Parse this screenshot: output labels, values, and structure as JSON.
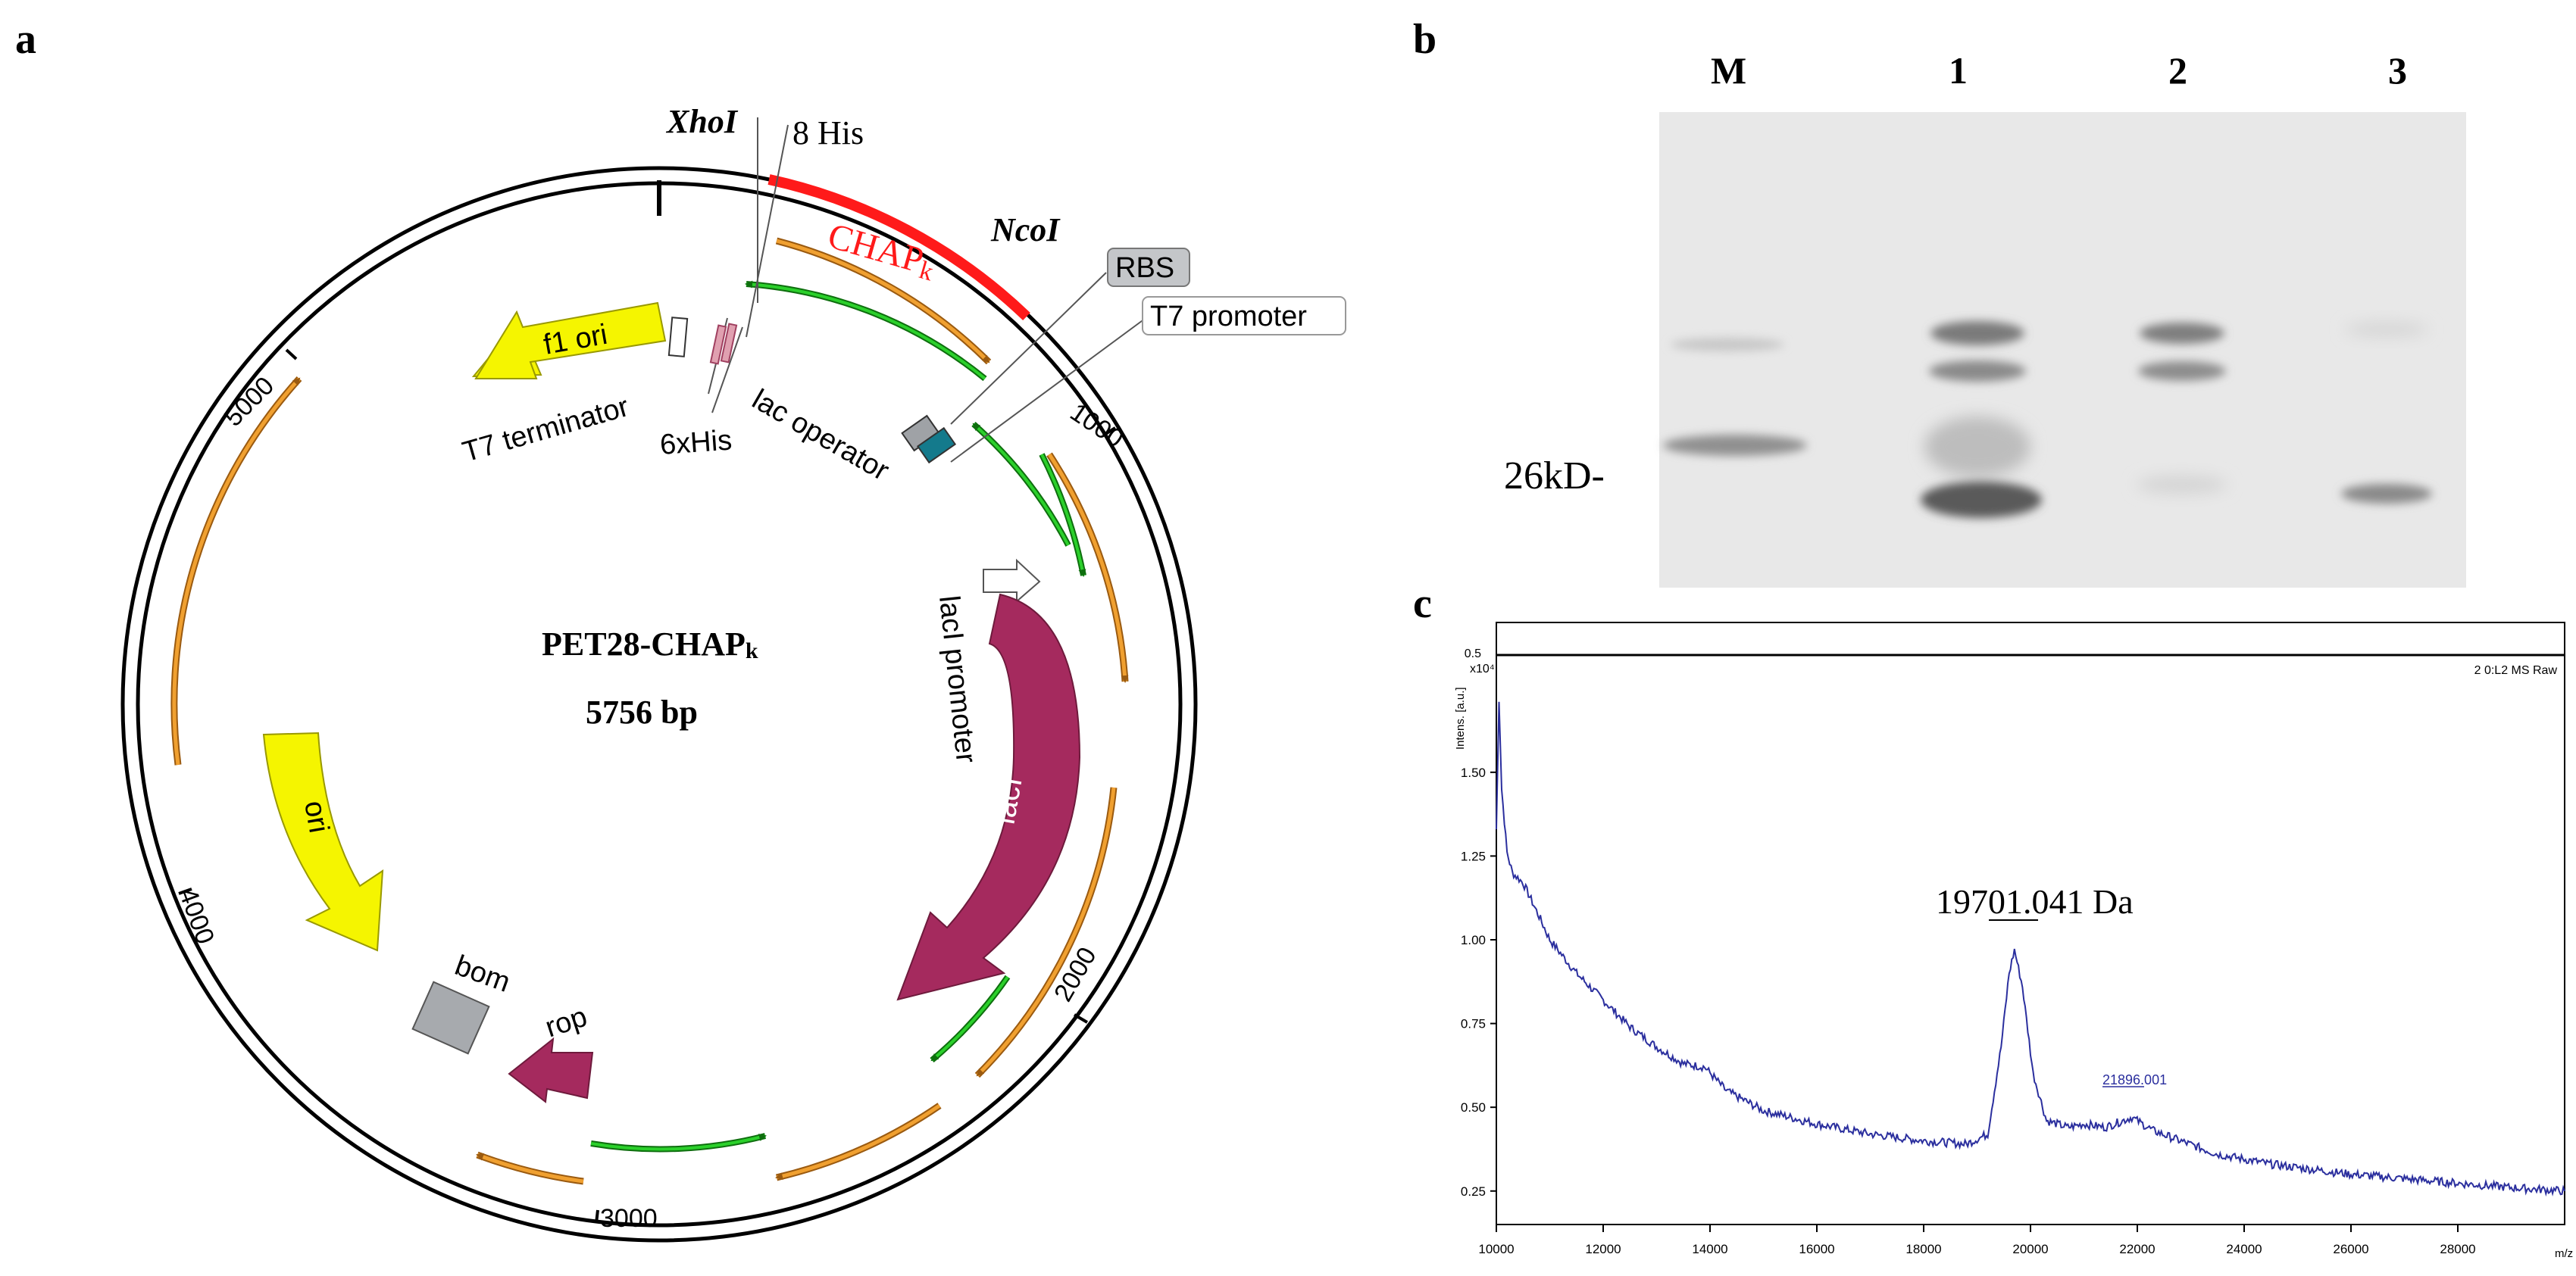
{
  "panel_a": {
    "letter": "a",
    "plasmid_name": "PET28-CHAP",
    "plasmid_name_sub": "k",
    "plasmid_size": "5756 bp",
    "features": {
      "xhoi": "XhoI",
      "his8": "8 His",
      "chapk": "CHAP",
      "chapk_sub": "k",
      "ncoi": "NcoI",
      "rbs": "RBS",
      "t7_promoter": "T7 promoter",
      "f1_ori": "f1 ori",
      "t7_terminator": "T7 terminator",
      "his6": "6xHis",
      "lac_operator": "lac operator",
      "laci_promoter": "lacI promoter",
      "laci": "lacI",
      "ori": "ori",
      "bom": "bom",
      "rop": "rop"
    },
    "ticks": [
      "1000",
      "2000",
      "3000",
      "4000",
      "5000"
    ],
    "colors": {
      "chapk": "#ff1a1a",
      "cds_orange": "#f0a030",
      "green": "#2bb82b",
      "yellow": "#f5f500",
      "lacI": "#a52a5e",
      "gray": "#a7aaae",
      "teal": "#147a8c"
    }
  },
  "panel_b": {
    "letter": "b",
    "lane_labels": [
      "M",
      "1",
      "2",
      "3"
    ],
    "marker_label": "26kD-"
  },
  "panel_c": {
    "letter": "c",
    "title_label": "2 0:L2 MS Raw",
    "y_axis_label": "Intens. [a.u.]",
    "y_multiplier": "x10⁴",
    "peak_label_main": "19701.041 Da",
    "peak_label_small": "21896.001",
    "x_unit": "m/z",
    "chart_data": {
      "type": "line",
      "title": "2 0:L2 MS Raw",
      "xlabel": "m/z",
      "ylabel": "Intens. [a.u.] x10^4",
      "xlim": [
        10000,
        30000
      ],
      "ylim": [
        0.15,
        1.85
      ],
      "x_ticks": [
        10000,
        12000,
        14000,
        16000,
        18000,
        20000,
        22000,
        24000,
        26000,
        28000
      ],
      "y_ticks": [
        0.25,
        0.5,
        0.75,
        1.0,
        1.25,
        1.5
      ],
      "x_tick_labels": [
        "10000",
        "12000",
        "14000",
        "16000",
        "18000",
        "20000",
        "22000",
        "24000",
        "26000",
        "28000"
      ],
      "y_tick_labels": [
        "0.25",
        "0.50",
        "0.75",
        "1.00",
        "1.25",
        "1.50"
      ],
      "extra_y_tick_label": "0.5",
      "series": [
        {
          "name": "MS Raw",
          "color": "#2b2f9e",
          "x": [
            10000,
            10050,
            10100,
            10200,
            10300,
            10500,
            10800,
            11000,
            11500,
            12000,
            12500,
            13000,
            13500,
            13900,
            14300,
            15000,
            16000,
            17000,
            18000,
            18800,
            19200,
            19450,
            19600,
            19700,
            19850,
            20050,
            20300,
            20700,
            21000,
            21400,
            21896,
            22300,
            22800,
            23500,
            24500,
            26000,
            27500,
            29000,
            30000
          ],
          "y": [
            1.33,
            1.72,
            1.45,
            1.26,
            1.2,
            1.17,
            1.07,
            1.0,
            0.9,
            0.82,
            0.74,
            0.68,
            0.63,
            0.62,
            0.55,
            0.49,
            0.45,
            0.42,
            0.4,
            0.39,
            0.42,
            0.68,
            0.9,
            0.97,
            0.86,
            0.6,
            0.46,
            0.44,
            0.45,
            0.44,
            0.47,
            0.43,
            0.4,
            0.36,
            0.33,
            0.3,
            0.28,
            0.26,
            0.25
          ]
        }
      ]
    }
  }
}
